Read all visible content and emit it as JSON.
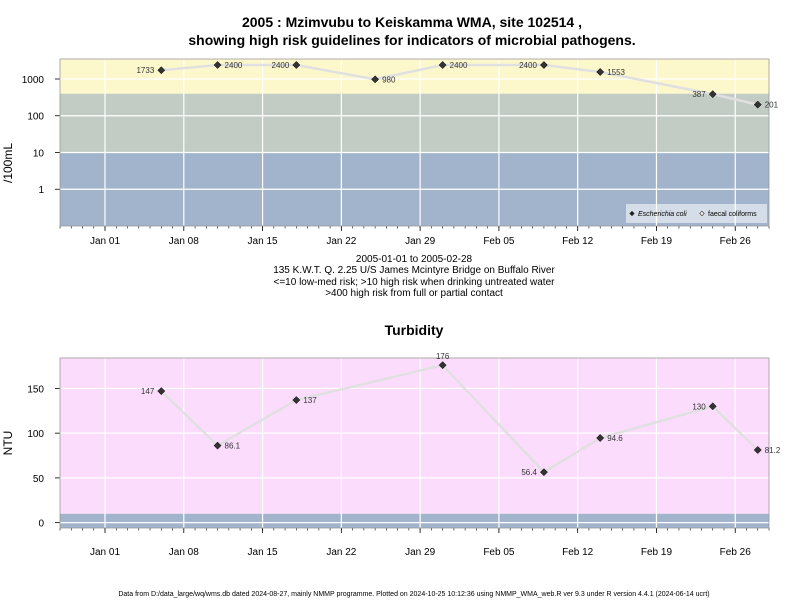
{
  "title_line1": "2005 : Mzimvubu to Keiskamma WMA, site 102514 ,",
  "title_line2": "showing high risk guidelines for indicators of microbial pathogens.",
  "caption_lines": [
    "2005-01-01 to 2005-02-28",
    "135 K.W.T. Q. 2.25 U/S James Mcintyre Bridge on Buffalo River",
    "<=10 low-med risk; >10 high risk when drinking untreated water",
    ">400 high risk from full or partial contact"
  ],
  "footer": "Data from D:/data_large/wq/wms.db dated 2024-08-27, mainly NMMP programme. Plotted on 2024-10-25 10:12:36 using NMMP_WMA_web.R ver 9.3 under R version 4.4.1 (2024-06-14 ucrt)",
  "colors": {
    "band_low": "#a2b4cc",
    "band_mid": "#c2ccc4",
    "band_high": "#fdf8cc",
    "turbidity_bg": "#fcdcfc",
    "turbidity_low": "#a2b4cc",
    "line": "#e0e0e0",
    "point": "#333333",
    "grid": "#ffffff"
  },
  "chart_data": [
    {
      "type": "line",
      "title": "",
      "ylabel": "/100mL",
      "yscale": "log",
      "ylim": [
        0.1,
        3500
      ],
      "xlim": [
        "2004-12-28",
        "2005-03-01"
      ],
      "yticks": [
        1,
        10,
        100,
        1000
      ],
      "ytick_labels": [
        "1",
        "10",
        "100",
        "1000"
      ],
      "xticks": [
        "2005-01-01",
        "2005-01-08",
        "2005-01-15",
        "2005-01-22",
        "2005-01-29",
        "2005-02-05",
        "2005-02-12",
        "2005-02-19",
        "2005-02-26"
      ],
      "xtick_labels": [
        "Jan 01",
        "Jan 08",
        "Jan 15",
        "Jan 22",
        "Jan 29",
        "Feb 05",
        "Feb 12",
        "Feb 19",
        "Feb 26"
      ],
      "bands": [
        {
          "from": 0.1,
          "to": 10,
          "color": "#a2b4cc"
        },
        {
          "from": 10,
          "to": 400,
          "color": "#c2ccc4"
        },
        {
          "from": 400,
          "to": 3500,
          "color": "#fdf8cc"
        }
      ],
      "legend_position": "bottom-right",
      "legend": [
        {
          "name": "Escherichia coli",
          "marker": "filled-diamond"
        },
        {
          "name": "faecal coliforms",
          "marker": "open-diamond"
        }
      ],
      "series": [
        {
          "name": "Escherichia coli",
          "x": [
            "2005-01-06",
            "2005-01-11",
            "2005-01-18",
            "2005-01-25",
            "2005-01-31",
            "2005-02-09",
            "2005-02-14",
            "2005-02-24",
            "2005-02-28"
          ],
          "values": [
            1733,
            2400,
            2400,
            980,
            2400,
            2400,
            1553,
            387,
            201
          ],
          "labels": [
            "1733",
            "2400",
            "2400",
            "980",
            "2400",
            "2400",
            "1553",
            "387",
            "201"
          ],
          "label_side": [
            "left",
            "right",
            "left",
            "right",
            "right",
            "left",
            "right",
            "left",
            "right"
          ]
        }
      ]
    },
    {
      "type": "line",
      "title": "Turbidity",
      "ylabel": "NTU",
      "yscale": "linear",
      "ylim": [
        -6,
        184
      ],
      "xlim": [
        "2004-12-28",
        "2005-03-01"
      ],
      "yticks": [
        0,
        50,
        100,
        150
      ],
      "ytick_labels": [
        "0",
        "50",
        "100",
        "150"
      ],
      "xticks": [
        "2005-01-01",
        "2005-01-08",
        "2005-01-15",
        "2005-01-22",
        "2005-01-29",
        "2005-02-05",
        "2005-02-12",
        "2005-02-19",
        "2005-02-26"
      ],
      "xtick_labels": [
        "Jan 01",
        "Jan 08",
        "Jan 15",
        "Jan 22",
        "Jan 29",
        "Feb 05",
        "Feb 12",
        "Feb 19",
        "Feb 26"
      ],
      "bands": [
        {
          "from": -6,
          "to": 10,
          "color": "#a2b4cc"
        },
        {
          "from": 10,
          "to": 184,
          "color": "#fcdcfc"
        }
      ],
      "series": [
        {
          "name": "",
          "x": [
            "2005-01-06",
            "2005-01-11",
            "2005-01-18",
            "2005-01-31",
            "2005-02-09",
            "2005-02-14",
            "2005-02-24",
            "2005-02-28"
          ],
          "values": [
            147,
            86.1,
            137,
            176,
            56.4,
            94.6,
            130,
            81.2
          ],
          "labels": [
            "147",
            "86.1",
            "137",
            "176",
            "56.4",
            "94.6",
            "130",
            "81.2"
          ],
          "label_side": [
            "left",
            "right",
            "right",
            "top",
            "left",
            "right",
            "left",
            "right"
          ]
        }
      ]
    }
  ]
}
